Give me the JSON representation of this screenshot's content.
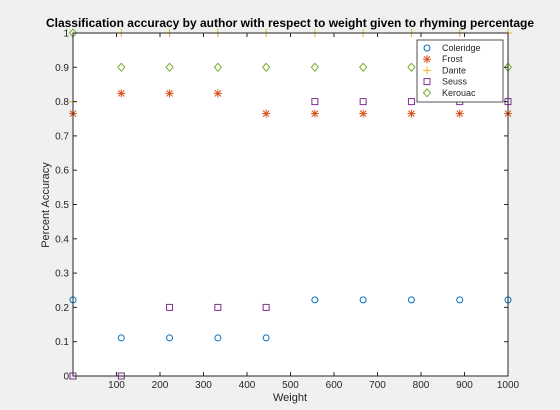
{
  "chart_data": {
    "type": "scatter",
    "title": "Classification accuracy by author with respect to weight given to rhyming percentage",
    "xlabel": "Weight",
    "ylabel": "Percent Accuracy",
    "xlim": [
      0,
      1000
    ],
    "ylim": [
      0,
      1
    ],
    "xticks": [
      "100",
      "200",
      "300",
      "400",
      "500",
      "600",
      "700",
      "800",
      "900",
      "1000"
    ],
    "yticks": [
      "0",
      "0.1",
      "0.2",
      "0.3",
      "0.4",
      "0.5",
      "0.6",
      "0.7",
      "0.8",
      "0.9",
      "1"
    ],
    "grid": false,
    "legend_position": "top-right",
    "x": [
      0,
      111,
      222,
      333,
      444,
      556,
      667,
      778,
      889,
      1000
    ],
    "series": [
      {
        "name": "Coleridge",
        "marker": "circle",
        "color": "#0072bd",
        "values": [
          0.222,
          0.111,
          0.111,
          0.111,
          0.111,
          0.222,
          0.222,
          0.222,
          0.222,
          0.222
        ]
      },
      {
        "name": "Frost",
        "marker": "asterisk",
        "color": "#d95319",
        "values": [
          0.765,
          0.824,
          0.824,
          0.824,
          0.765,
          0.765,
          0.765,
          0.765,
          0.765,
          0.765
        ]
      },
      {
        "name": "Dante",
        "marker": "plus",
        "color": "#edb120",
        "values": [
          0.8,
          1.0,
          1.0,
          1.0,
          1.0,
          1.0,
          1.0,
          1.0,
          1.0,
          1.0
        ]
      },
      {
        "name": "Seuss",
        "marker": "square",
        "color": "#7e2f8e",
        "values": [
          0.0,
          0.0,
          0.2,
          0.2,
          0.2,
          0.8,
          0.8,
          0.8,
          0.8,
          0.8
        ]
      },
      {
        "name": "Kerouac",
        "marker": "diamond",
        "color": "#77ac30",
        "values": [
          1.0,
          0.9,
          0.9,
          0.9,
          0.9,
          0.9,
          0.9,
          0.9,
          0.9,
          0.9
        ]
      }
    ]
  }
}
